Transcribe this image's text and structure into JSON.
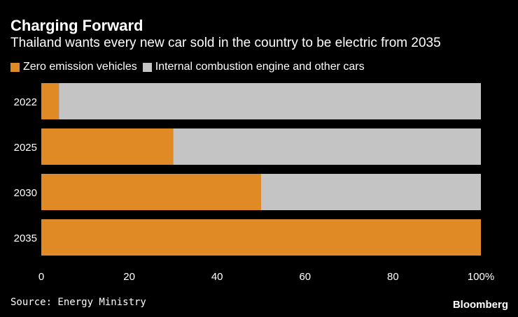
{
  "chart_data": {
    "type": "bar",
    "orientation": "horizontal",
    "stacked": true,
    "title": "Charging Forward",
    "subtitle": "Thailand wants every new car sold in the country to be electric from 2035",
    "categories": [
      "2022",
      "2025",
      "2030",
      "2035"
    ],
    "series": [
      {
        "name": "Zero emission vehicles",
        "color": "#e08a25",
        "values": [
          4,
          30,
          50,
          100
        ]
      },
      {
        "name": "Internal combustion engine and other cars",
        "color": "#c4c4c4",
        "values": [
          96,
          70,
          50,
          0
        ]
      }
    ],
    "xlim": [
      0,
      100
    ],
    "xticks": [
      "0",
      "20",
      "40",
      "60",
      "80",
      "100%"
    ],
    "xlabel": "",
    "ylabel": "",
    "legend_position": "top-left",
    "grid": false
  },
  "source": "Source: Energy Ministry",
  "brand": "Bloomberg"
}
